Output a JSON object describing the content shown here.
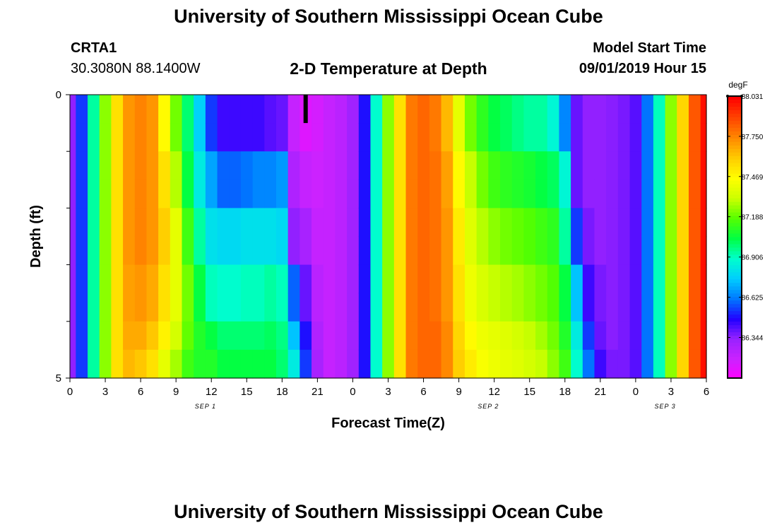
{
  "header": {
    "title": "University of Southern Mississippi Ocean Cube",
    "station_id": "CRTA1",
    "station_coords": "30.3080N 88.1400W",
    "model_start_label": "Model Start Time",
    "model_start_value": "09/01/2019 Hour 15"
  },
  "footer": {
    "title": "University of Southern Mississippi Ocean Cube"
  },
  "chart_data": {
    "type": "heatmap",
    "title": "2-D Temperature at Depth",
    "xlabel": "Forecast Time(Z)",
    "ylabel": "Depth (ft)",
    "x_tick_labels": [
      "0",
      "3",
      "6",
      "9",
      "12",
      "15",
      "18",
      "21",
      "0",
      "3",
      "6",
      "9",
      "12",
      "15",
      "18",
      "21",
      "0",
      "3",
      "6"
    ],
    "x_hours": [
      0,
      3,
      6,
      9,
      12,
      15,
      18,
      21,
      24,
      27,
      30,
      33,
      36,
      39,
      42,
      45,
      48,
      51,
      54
    ],
    "xlim": [
      0,
      54
    ],
    "date_labels": [
      {
        "text": "SEP 1",
        "hour": 11.5
      },
      {
        "text": "SEP 2",
        "hour": 35.5
      },
      {
        "text": "SEP 3",
        "hour": 50.5
      }
    ],
    "y_tick_labels": [
      {
        "text": "0",
        "value": 0
      },
      {
        "text": "5",
        "value": 5
      }
    ],
    "y_minor_ticks": [
      1,
      2,
      3,
      4
    ],
    "ylim": [
      0,
      5
    ],
    "depth_levels": [
      0.25,
      0.75,
      1.25,
      1.75,
      2.25,
      2.75,
      3.25,
      3.75,
      4.25,
      4.75
    ],
    "colorbar": {
      "unit": "degF",
      "tick_labels": [
        "88.031",
        "87.750",
        "87.469",
        "87.188",
        "86.906",
        "86.625",
        "86.344"
      ],
      "tick_values": [
        88.031,
        87.75,
        87.469,
        87.188,
        86.906,
        86.625,
        86.344
      ],
      "range": [
        86.06,
        88.031
      ],
      "colors": [
        "#ff00ff",
        "#cc22ff",
        "#9922ff",
        "#2200ff",
        "#0077ff",
        "#00ccff",
        "#00ffcc",
        "#00ff44",
        "#55ff00",
        "#ccff00",
        "#ffff00",
        "#ffcc00",
        "#ff8800",
        "#ff4400",
        "#ff0000"
      ]
    },
    "marker": {
      "hour": 20,
      "depth_start": 0,
      "depth_end": 0.5
    },
    "columns": [
      {
        "hour": 0,
        "values": [
          86.35,
          86.35,
          86.35,
          86.35,
          86.35,
          86.35,
          86.35,
          86.35,
          86.35,
          86.35
        ]
      },
      {
        "hour": 1,
        "values": [
          86.55,
          86.55,
          86.55,
          86.55,
          86.55,
          86.55,
          86.55,
          86.55,
          86.55,
          86.55
        ]
      },
      {
        "hour": 2,
        "values": [
          86.95,
          86.95,
          86.95,
          86.95,
          86.95,
          86.95,
          86.95,
          86.95,
          86.95,
          86.95
        ]
      },
      {
        "hour": 3,
        "values": [
          87.25,
          87.25,
          87.25,
          87.25,
          87.25,
          87.25,
          87.25,
          87.25,
          87.25,
          87.25
        ]
      },
      {
        "hour": 4,
        "values": [
          87.55,
          87.55,
          87.55,
          87.55,
          87.55,
          87.55,
          87.55,
          87.55,
          87.55,
          87.55
        ]
      },
      {
        "hour": 5,
        "values": [
          87.72,
          87.72,
          87.72,
          87.72,
          87.72,
          87.72,
          87.7,
          87.7,
          87.68,
          87.65
        ]
      },
      {
        "hour": 6,
        "values": [
          87.76,
          87.76,
          87.76,
          87.76,
          87.76,
          87.76,
          87.72,
          87.72,
          87.68,
          87.62
        ]
      },
      {
        "hour": 7,
        "values": [
          87.72,
          87.72,
          87.72,
          87.72,
          87.72,
          87.72,
          87.68,
          87.68,
          87.62,
          87.55
        ]
      },
      {
        "hour": 8,
        "values": [
          87.48,
          87.48,
          87.55,
          87.55,
          87.6,
          87.6,
          87.55,
          87.55,
          87.5,
          87.4
        ]
      },
      {
        "hour": 9,
        "values": [
          87.22,
          87.22,
          87.3,
          87.3,
          87.4,
          87.4,
          87.4,
          87.4,
          87.35,
          87.28
        ]
      },
      {
        "hour": 10,
        "values": [
          87.0,
          87.0,
          87.05,
          87.05,
          87.15,
          87.15,
          87.22,
          87.22,
          87.2,
          87.15
        ]
      },
      {
        "hour": 11,
        "values": [
          86.78,
          86.78,
          86.85,
          86.85,
          86.95,
          86.95,
          87.05,
          87.05,
          87.1,
          87.1
        ]
      },
      {
        "hour": 12,
        "values": [
          86.55,
          86.55,
          86.7,
          86.7,
          86.82,
          86.82,
          86.92,
          86.92,
          87.05,
          87.1
        ]
      },
      {
        "hour": 13,
        "values": [
          86.45,
          86.45,
          86.6,
          86.6,
          86.8,
          86.8,
          86.9,
          86.9,
          87.0,
          87.05
        ]
      },
      {
        "hour": 14,
        "values": [
          86.45,
          86.45,
          86.6,
          86.6,
          86.8,
          86.8,
          86.9,
          86.9,
          87.0,
          87.05
        ]
      },
      {
        "hour": 15,
        "values": [
          86.45,
          86.45,
          86.62,
          86.62,
          86.82,
          86.82,
          86.92,
          86.92,
          87.0,
          87.05
        ]
      },
      {
        "hour": 16,
        "values": [
          86.45,
          86.45,
          86.65,
          86.65,
          86.82,
          86.82,
          86.92,
          86.92,
          87.0,
          87.05
        ]
      },
      {
        "hour": 17,
        "values": [
          86.42,
          86.42,
          86.65,
          86.65,
          86.82,
          86.82,
          86.95,
          86.95,
          87.02,
          87.05
        ]
      },
      {
        "hour": 18,
        "values": [
          86.4,
          86.4,
          86.68,
          86.68,
          86.8,
          86.8,
          86.92,
          86.92,
          86.98,
          87.0
        ]
      },
      {
        "hour": 19,
        "values": [
          86.22,
          86.22,
          86.28,
          86.28,
          86.35,
          86.35,
          86.6,
          86.6,
          86.75,
          86.85
        ]
      },
      {
        "hour": 20,
        "values": [
          86.15,
          86.15,
          86.22,
          86.22,
          86.3,
          86.3,
          86.4,
          86.4,
          86.5,
          86.55
        ]
      },
      {
        "hour": 21,
        "values": [
          86.18,
          86.18,
          86.2,
          86.2,
          86.22,
          86.22,
          86.25,
          86.25,
          86.28,
          86.3
        ]
      },
      {
        "hour": 22,
        "values": [
          86.22,
          86.22,
          86.22,
          86.22,
          86.22,
          86.22,
          86.22,
          86.22,
          86.22,
          86.22
        ]
      },
      {
        "hour": 23,
        "values": [
          86.25,
          86.25,
          86.25,
          86.25,
          86.25,
          86.25,
          86.25,
          86.25,
          86.25,
          86.25
        ]
      },
      {
        "hour": 24,
        "values": [
          86.32,
          86.32,
          86.32,
          86.32,
          86.32,
          86.32,
          86.32,
          86.32,
          86.32,
          86.32
        ]
      },
      {
        "hour": 25,
        "values": [
          86.5,
          86.5,
          86.5,
          86.5,
          86.5,
          86.5,
          86.5,
          86.5,
          86.5,
          86.5
        ]
      },
      {
        "hour": 26,
        "values": [
          86.9,
          86.9,
          86.9,
          86.9,
          86.9,
          86.9,
          86.9,
          86.9,
          86.9,
          86.9
        ]
      },
      {
        "hour": 27,
        "values": [
          87.25,
          87.25,
          87.25,
          87.25,
          87.25,
          87.25,
          87.25,
          87.25,
          87.25,
          87.25
        ]
      },
      {
        "hour": 28,
        "values": [
          87.55,
          87.55,
          87.55,
          87.55,
          87.55,
          87.55,
          87.55,
          87.55,
          87.55,
          87.55
        ]
      },
      {
        "hour": 29,
        "values": [
          87.78,
          87.78,
          87.78,
          87.78,
          87.78,
          87.78,
          87.78,
          87.78,
          87.78,
          87.78
        ]
      },
      {
        "hour": 30,
        "values": [
          87.82,
          87.82,
          87.82,
          87.82,
          87.82,
          87.82,
          87.82,
          87.82,
          87.82,
          87.82
        ]
      },
      {
        "hour": 31,
        "values": [
          87.78,
          87.78,
          87.8,
          87.8,
          87.8,
          87.8,
          87.8,
          87.8,
          87.82,
          87.82
        ]
      },
      {
        "hour": 32,
        "values": [
          87.65,
          87.65,
          87.7,
          87.7,
          87.72,
          87.72,
          87.72,
          87.72,
          87.75,
          87.75
        ]
      },
      {
        "hour": 33,
        "values": [
          87.4,
          87.4,
          87.48,
          87.48,
          87.52,
          87.52,
          87.55,
          87.55,
          87.58,
          87.6
        ]
      },
      {
        "hour": 34,
        "values": [
          87.22,
          87.22,
          87.32,
          87.32,
          87.38,
          87.38,
          87.42,
          87.42,
          87.48,
          87.52
        ]
      },
      {
        "hour": 35,
        "values": [
          87.12,
          87.12,
          87.22,
          87.22,
          87.3,
          87.3,
          87.36,
          87.36,
          87.42,
          87.45
        ]
      },
      {
        "hour": 36,
        "values": [
          87.05,
          87.05,
          87.15,
          87.15,
          87.25,
          87.25,
          87.32,
          87.32,
          87.4,
          87.42
        ]
      },
      {
        "hour": 37,
        "values": [
          87.02,
          87.02,
          87.12,
          87.12,
          87.22,
          87.22,
          87.3,
          87.3,
          87.38,
          87.4
        ]
      },
      {
        "hour": 38,
        "values": [
          86.98,
          86.98,
          87.1,
          87.1,
          87.2,
          87.2,
          87.28,
          87.28,
          87.35,
          87.38
        ]
      },
      {
        "hour": 39,
        "values": [
          86.95,
          86.95,
          87.08,
          87.08,
          87.18,
          87.18,
          87.25,
          87.25,
          87.32,
          87.35
        ]
      },
      {
        "hour": 40,
        "values": [
          86.95,
          86.95,
          87.05,
          87.05,
          87.15,
          87.15,
          87.22,
          87.22,
          87.28,
          87.32
        ]
      },
      {
        "hour": 41,
        "values": [
          86.88,
          86.88,
          87.02,
          87.02,
          87.12,
          87.12,
          87.18,
          87.18,
          87.22,
          87.25
        ]
      },
      {
        "hour": 42,
        "values": [
          86.65,
          86.65,
          86.88,
          86.88,
          86.95,
          86.95,
          87.05,
          87.05,
          87.1,
          87.15
        ]
      },
      {
        "hour": 43,
        "values": [
          86.4,
          86.4,
          86.4,
          86.4,
          86.55,
          86.55,
          86.75,
          86.75,
          86.85,
          86.9
        ]
      },
      {
        "hour": 44,
        "values": [
          86.35,
          86.35,
          86.35,
          86.35,
          86.38,
          86.38,
          86.45,
          86.45,
          86.55,
          86.62
        ]
      },
      {
        "hour": 45,
        "values": [
          86.35,
          86.35,
          86.35,
          86.35,
          86.35,
          86.35,
          86.38,
          86.38,
          86.4,
          86.45
        ]
      },
      {
        "hour": 46,
        "values": [
          86.36,
          86.36,
          86.36,
          86.36,
          86.36,
          86.36,
          86.36,
          86.36,
          86.36,
          86.38
        ]
      },
      {
        "hour": 47,
        "values": [
          86.38,
          86.38,
          86.38,
          86.38,
          86.38,
          86.38,
          86.38,
          86.38,
          86.38,
          86.38
        ]
      },
      {
        "hour": 48,
        "values": [
          86.42,
          86.42,
          86.42,
          86.42,
          86.42,
          86.42,
          86.42,
          86.42,
          86.42,
          86.42
        ]
      },
      {
        "hour": 49,
        "values": [
          86.62,
          86.62,
          86.62,
          86.62,
          86.62,
          86.62,
          86.62,
          86.62,
          86.62,
          86.62
        ]
      },
      {
        "hour": 50,
        "values": [
          86.92,
          86.92,
          86.92,
          86.92,
          86.92,
          86.92,
          86.92,
          86.92,
          86.92,
          86.92
        ]
      },
      {
        "hour": 51,
        "values": [
          87.25,
          87.25,
          87.25,
          87.25,
          87.25,
          87.25,
          87.25,
          87.25,
          87.25,
          87.25
        ]
      },
      {
        "hour": 52,
        "values": [
          87.58,
          87.58,
          87.58,
          87.58,
          87.58,
          87.58,
          87.58,
          87.58,
          87.58,
          87.58
        ]
      },
      {
        "hour": 53,
        "values": [
          87.85,
          87.85,
          87.85,
          87.85,
          87.85,
          87.85,
          87.85,
          87.85,
          87.85,
          87.85
        ]
      },
      {
        "hour": 54,
        "values": [
          88.0,
          88.0,
          88.0,
          88.0,
          88.0,
          88.0,
          88.0,
          88.0,
          88.0,
          88.0
        ]
      }
    ]
  }
}
